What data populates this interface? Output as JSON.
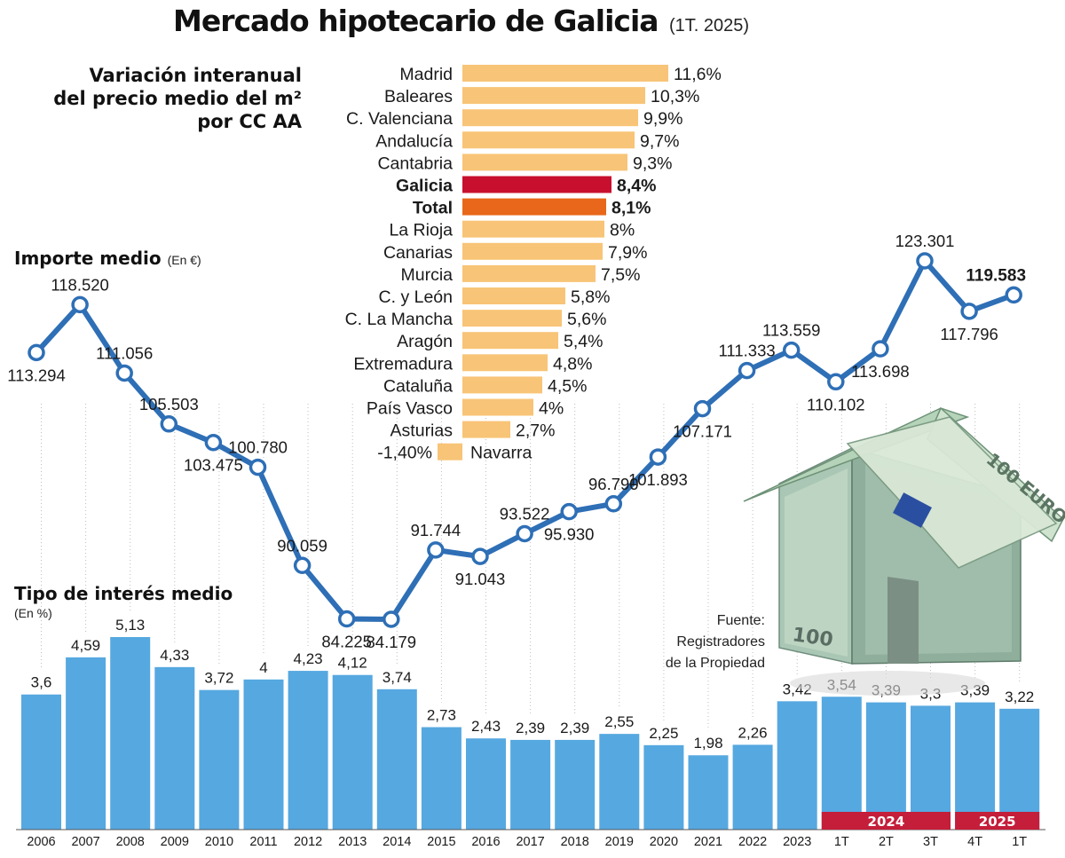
{
  "title": "Mercado hipotecario de Galicia",
  "subtitle": "(1T. 2025)",
  "source": [
    "Fuente:",
    "Registradores",
    "de la Propiedad"
  ],
  "colors": {
    "bar_orange": "#f8c477",
    "galicia_red": "#c8102e",
    "total_orange": "#e8671a",
    "line_blue": "#2e6fb6",
    "rate_blue": "#56a8e0",
    "year_band_red": "#c41e3a"
  },
  "chart_data": [
    {
      "type": "bar",
      "orientation": "horizontal",
      "title": [
        "Variación interanual",
        "del precio medio del m²",
        "por CC AA"
      ],
      "categories": [
        "Madrid",
        "Baleares",
        "C. Valenciana",
        "Andalucía",
        "Cantabria",
        "Galicia",
        "Total",
        "La Rioja",
        "Canarias",
        "Murcia",
        "C. y León",
        "C. La Mancha",
        "Aragón",
        "Extremadura",
        "Cataluña",
        "País Vasco",
        "Asturias",
        "Navarra"
      ],
      "values": [
        11.6,
        10.3,
        9.9,
        9.7,
        9.3,
        8.4,
        8.1,
        8,
        7.9,
        7.5,
        5.8,
        5.6,
        5.4,
        4.8,
        4.5,
        4,
        2.7,
        -1.4
      ],
      "labels": [
        "11,6%",
        "10,3%",
        "9,9%",
        "9,7%",
        "9,3%",
        "8,4%",
        "8,1%",
        "8%",
        "7,9%",
        "7,5%",
        "5,8%",
        "5,6%",
        "5,4%",
        "4,8%",
        "4,5%",
        "4%",
        "2,7%",
        "-1,40%"
      ],
      "highlight": {
        "Galicia": "galicia_red",
        "Total": "total_orange"
      },
      "bold_categories": [
        "Galicia",
        "Total"
      ]
    },
    {
      "type": "line",
      "title": "Importe medio",
      "unit_note": "(En €)",
      "values": [
        113294,
        118520,
        111056,
        105503,
        103475,
        100780,
        90059,
        84225,
        84179,
        91744,
        91043,
        93522,
        95930,
        96790,
        101893,
        107171,
        111333,
        113559,
        110102,
        113698,
        123301,
        117796,
        119583
      ],
      "labels": [
        "113.294",
        "118.520",
        "111.056",
        "105.503",
        "103.475",
        "100.780",
        "90.059",
        "84.225",
        "84.179",
        "91.744",
        "91.043",
        "93.522",
        "95.930",
        "96.790",
        "101.893",
        "107.171",
        "111.333",
        "113.559",
        "110.102",
        "113.698",
        "123.301",
        "117.796",
        "119.583"
      ],
      "label_side": [
        "below",
        "above",
        "above",
        "above",
        "below",
        "above",
        "above",
        "below",
        "below",
        "above",
        "below",
        "above",
        "below",
        "above",
        "below",
        "below",
        "above",
        "above",
        "below",
        "below",
        "above",
        "below",
        "above"
      ]
    },
    {
      "type": "bar",
      "title": "Tipo de interés medio",
      "unit_note": "(En %)",
      "categories": [
        "2006",
        "2007",
        "2008",
        "2009",
        "2010",
        "2011",
        "2012",
        "2013",
        "2014",
        "2015",
        "2016",
        "2017",
        "2018",
        "2019",
        "2020",
        "2021",
        "2022",
        "2023",
        "1T",
        "2T",
        "3T",
        "4T",
        "1T"
      ],
      "values": [
        3.6,
        4.59,
        5.13,
        4.33,
        3.72,
        4,
        4.23,
        4.12,
        3.74,
        2.73,
        2.43,
        2.39,
        2.39,
        2.55,
        2.25,
        1.98,
        2.26,
        3.42,
        3.54,
        3.39,
        3.3,
        3.39,
        3.22
      ],
      "labels": [
        "3,6",
        "4,59",
        "5,13",
        "4,33",
        "3,72",
        "4",
        "4,23",
        "4,12",
        "3,74",
        "2,73",
        "2,43",
        "2,39",
        "2,39",
        "2,55",
        "2,25",
        "1,98",
        "2,26",
        "3,42",
        "3,54",
        "3,39",
        "3,3",
        "3,39",
        "3,22"
      ],
      "period_groups": [
        {
          "label": "2024",
          "categories": [
            "1T",
            "2T",
            "3T"
          ]
        },
        {
          "label": "2025",
          "categories": [
            "4T",
            "1T"
          ]
        }
      ]
    }
  ]
}
